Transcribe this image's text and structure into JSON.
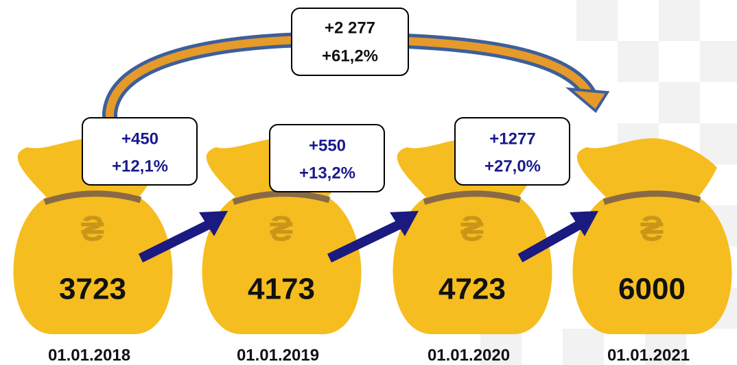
{
  "bags": [
    {
      "amount": "3723",
      "date": "01.01.2018"
    },
    {
      "amount": "4173",
      "date": "01.01.2019"
    },
    {
      "amount": "4723",
      "date": "01.01.2020"
    },
    {
      "amount": "6000",
      "date": "01.01.2021"
    }
  ],
  "changes": [
    {
      "absolute": "+450",
      "percent": "+12,1%"
    },
    {
      "absolute": "+550",
      "percent": "+13,2%"
    },
    {
      "absolute": "+1277",
      "percent": "+27,0%"
    }
  ],
  "total_change": {
    "absolute": "+2 277",
    "percent": "+61,2%"
  },
  "currency_symbol": "₴"
}
